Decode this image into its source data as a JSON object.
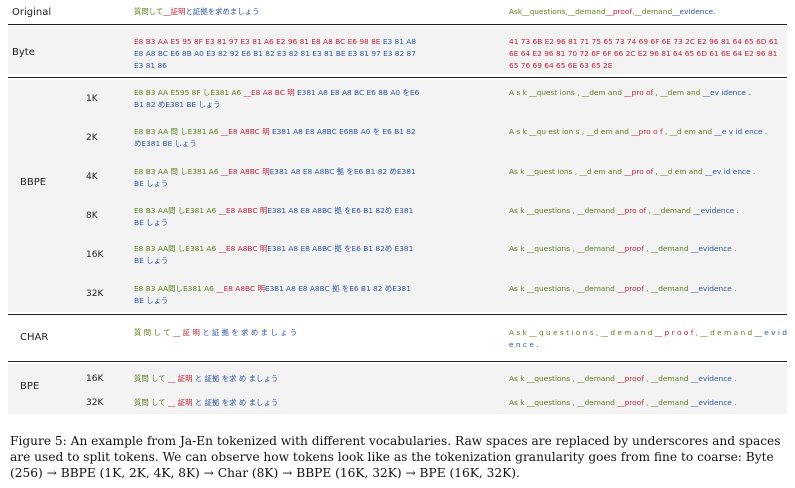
{
  "colors": {
    "green": "#5b7f1e",
    "red": "#c0243a",
    "blue": "#2f55a4",
    "black": "#222222"
  },
  "header": {
    "original": "Original",
    "ja": "質問して__証明と証拠を求めましょう",
    "en": "Ask__questions,__demand__proof,__demand__evidence."
  },
  "groups": {
    "byte": "Byte",
    "bbpe": "BBPE",
    "char": "CHAR",
    "bpe": "BPE"
  },
  "rows": {
    "byte": {
      "ja": "E8 B3 AA E5 95 8F E3 81 97 E3 81 A6 E2 96 81 E8 A8 BC E6 98 8E E3 81 A8 E8 A8 BC E6 8B A0 E3 82 92 E6 B1 82 E3 82 81 E3 81 BE E3 81 97 E3 82 87 E3 81 86",
      "en": "41 73 6B E2 96 81 71 75 65 73 74 69 6F 6E 73 2C E2 96 81 64 65 6D 61 6E 64 E2 96 81 70 72 6F 6F 66 2C E2 96 81 64 65 6D 61 6E 64 E2 96 81 65 76 69 64 65 6E 63 65 2E"
    },
    "bbpe1k": {
      "size": "1K",
      "ja": "E8 B3 AA E595 8F しE381 A6 __E8 A8 BC 明 E381 A8 E8 A8 BC E6 8B A0 をE6 B1 82 めE381 BE しょう",
      "en": "A s k __quest ions , __dem and __pro of , __dem and __ev idence ."
    },
    "bbpe2k": {
      "size": "2K",
      "ja": "E8 B3 AA 問 しE381 A6 __E8 A8BC 明 E381 A8 E8 A8BC E68B A0 を E6 B1 82 めE381 BE しょう",
      "en": "A s k __qu est ion s , __d em and __pro o f , __d em and __e v id ence ."
    },
    "bbpe4k": {
      "size": "4K",
      "ja": "E8 B3 AA 問 しE381 A6 __E8 A8BC 明E381 A8 E8 A8BC 拠 をE6 B1 82 めE381 BE しょう",
      "en": "As k __quest ions , __d em and __pro of , __d em and __ev id ence ."
    },
    "bbpe8k": {
      "size": "8K",
      "ja": "E8 B3 AA問 しE381 A6 __E8 A8BC 明E381 A8 E8 A8BC 拠 をE6 B1 82め E381 BE しょう",
      "en": "As k __questions , __demand __pro of , __demand __evidence ."
    },
    "bbpe16k": {
      "size": "16K",
      "ja": "E8 B3 AA問 しE381 A6 __E8 A8BC 明E381 A8 E8 A8BC 拠 をE6 B1 82め E381 BE しょう",
      "en": "As k __questions , __demand __proof , __demand __evidence ."
    },
    "bbpe32k": {
      "size": "32K",
      "ja": "E8 B3 AA問しE381 A6 __E8 A8BC 明E381 A8 E8 A8BC 拠 をE6 B1 82 めE381 BE しょう",
      "en": "As k __questions , __demand __proof , __demand __evidence ."
    },
    "char": {
      "ja": "質 問 し て __ 証 明 と 証 拠 を 求 め ま し ょ う",
      "en": "A s k __ q u e s t i o n s , __ d e m a n d __ p r o o f , __ d e m a n d __ e v i d e n c e ."
    },
    "bpe16k": {
      "size": "16K",
      "ja": "質問 して __ 証明 と 証拠 を求 め ましょう",
      "en": "As k __questions , __demand __proof , __demand __evidence ."
    },
    "bpe32k": {
      "size": "32K",
      "ja": "質問 して __ 証明 と 証拠 を求 め ましょう",
      "en": "As k __questions , __demand __proof , __demand __evidence ."
    }
  },
  "caption": "Figure 5: An example from Ja-En tokenized with different vocabularies. Raw spaces are replaced by underscores and spaces are used to split tokens. We can observe how tokens look like as the tokenization granularity goes from fine to coarse: Byte (256) → BBPE (1K, 2K, 4K, 8K) → Char (8K) → BBPE (16K, 32K) → BPE (16K, 32K)."
}
